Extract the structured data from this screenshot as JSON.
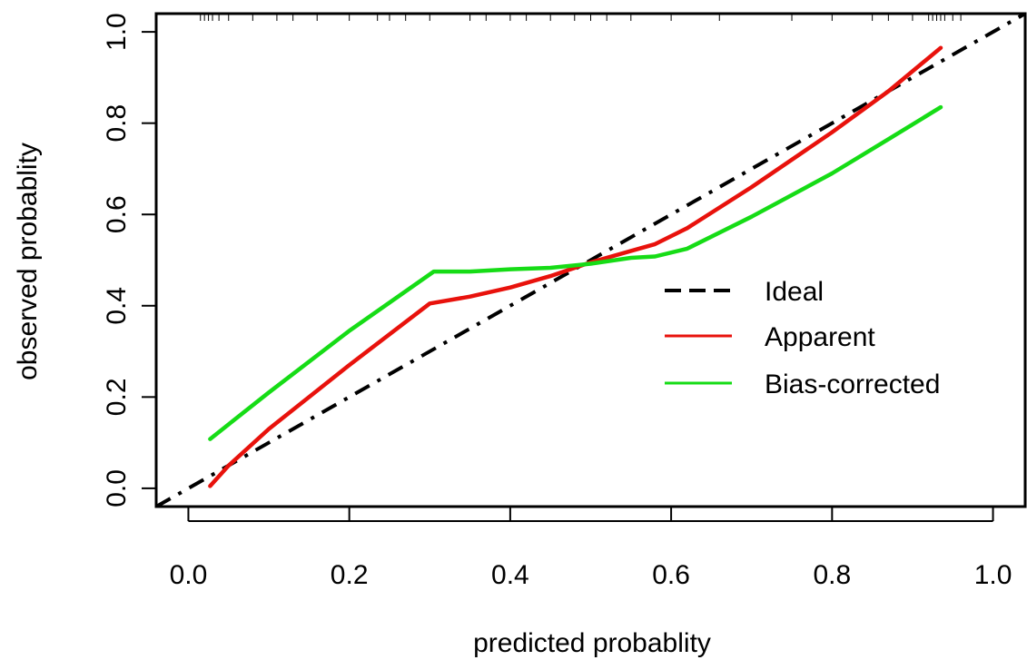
{
  "chart_data": {
    "type": "line",
    "title": "",
    "xlabel": "predicted probablity",
    "ylabel": "observed probablity",
    "xlim": [
      -0.04,
      1.04
    ],
    "ylim": [
      -0.04,
      1.04
    ],
    "xticks": [
      0.0,
      0.2,
      0.4,
      0.6,
      0.8,
      1.0
    ],
    "xtick_labels": [
      "0.0",
      "0.2",
      "0.4",
      "0.6",
      "0.8",
      "1.0"
    ],
    "yticks": [
      0.0,
      0.2,
      0.4,
      0.6,
      0.8,
      1.0
    ],
    "ytick_labels": [
      "0.0",
      "0.2",
      "0.4",
      "0.6",
      "0.8",
      "1.0"
    ],
    "grid": false,
    "legend_position": "right-center",
    "series": [
      {
        "name": "Ideal",
        "color": "#000000",
        "style": "dashed",
        "x": [
          -0.04,
          1.04
        ],
        "y": [
          -0.04,
          1.04
        ]
      },
      {
        "name": "Apparent",
        "color": "#e8120c",
        "style": "solid",
        "x": [
          0.027,
          0.05,
          0.1,
          0.2,
          0.3,
          0.35,
          0.4,
          0.45,
          0.5,
          0.55,
          0.58,
          0.62,
          0.7,
          0.8,
          0.87,
          0.935
        ],
        "y": [
          0.005,
          0.05,
          0.13,
          0.27,
          0.405,
          0.42,
          0.44,
          0.465,
          0.495,
          0.52,
          0.535,
          0.57,
          0.66,
          0.78,
          0.87,
          0.965
        ]
      },
      {
        "name": "Bias-corrected",
        "color": "#16dc16",
        "style": "solid",
        "x": [
          0.027,
          0.1,
          0.2,
          0.305,
          0.35,
          0.4,
          0.45,
          0.5,
          0.55,
          0.58,
          0.62,
          0.7,
          0.8,
          0.87,
          0.935
        ],
        "y": [
          0.108,
          0.21,
          0.345,
          0.475,
          0.475,
          0.48,
          0.483,
          0.492,
          0.505,
          0.508,
          0.525,
          0.595,
          0.69,
          0.765,
          0.835
        ]
      }
    ],
    "rug_x": [
      0.015,
      0.02,
      0.025,
      0.03,
      0.038,
      0.05,
      0.08,
      0.11,
      0.13,
      0.16,
      0.2,
      0.235,
      0.25,
      0.27,
      0.3,
      0.35,
      0.37,
      0.4,
      0.42,
      0.45,
      0.48,
      0.5,
      0.52,
      0.55,
      0.6,
      0.66,
      0.75,
      0.8,
      0.85,
      0.87,
      0.9,
      0.92,
      0.925,
      0.93,
      0.935,
      0.94,
      0.95,
      0.96
    ]
  }
}
